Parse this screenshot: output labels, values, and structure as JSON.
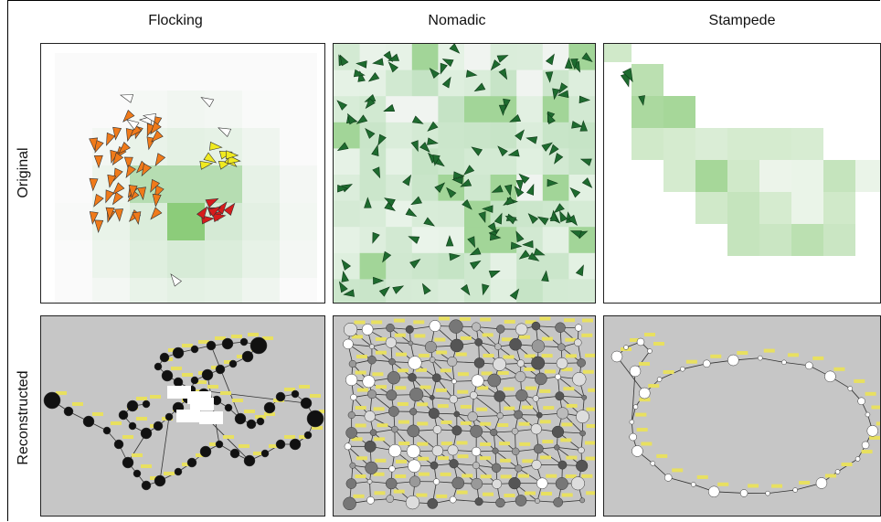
{
  "columns": [
    "Flocking",
    "Nomadic",
    "Stampede"
  ],
  "rows": [
    "Original",
    "Reconstructed"
  ],
  "colors": {
    "grid_light": "#eaf4ea",
    "grid_mid": "#c4e3c4",
    "grid_dark": "#8ccc7a",
    "arrow_orange": "#f07a1a",
    "arrow_yellow": "#f0ea20",
    "arrow_red": "#d61c1c",
    "arrow_white": "#ffffff",
    "arrow_green": "#1e6b2f",
    "recon_bg": "#c6c6c6",
    "node_black": "#111111",
    "node_white": "#ffffff",
    "label_yellow": "#e8e060"
  }
}
